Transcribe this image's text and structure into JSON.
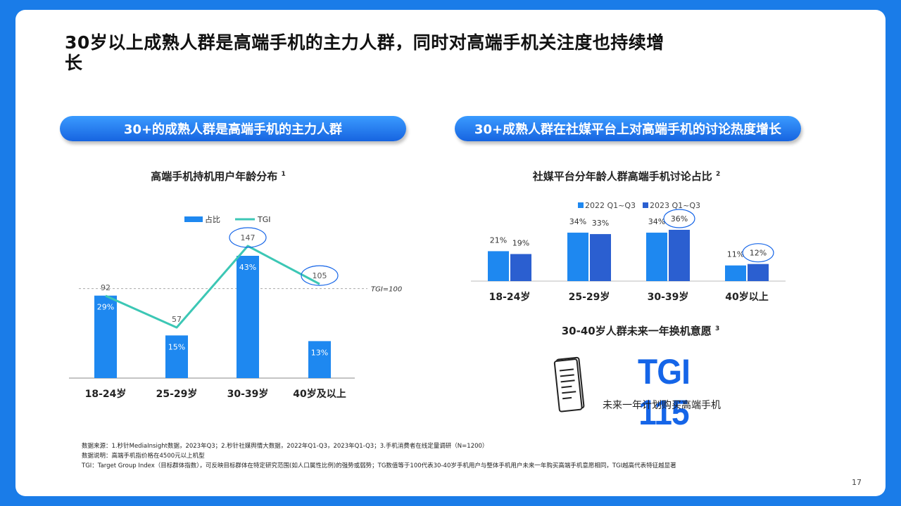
{
  "title": "30岁以上成熟人群是高端手机的主力人群，同时对高端手机关注度也持续增长",
  "left_banner": "30+的成熟人群是高端手机的主力人群",
  "right_banner": "30+成熟人群在社媒平台上对高端手机的讨论热度增长",
  "left_subhead": "高端手机持机用户年龄分布",
  "left_subhead_note": "1",
  "right_subhead": "社媒平台分年龄人群高端手机讨论占比",
  "right_subhead_note": "2",
  "tgi_subhead": "30-40岁人群未来一年换机意愿",
  "tgi_subhead_note": "3",
  "tgi_value": "TGI 115",
  "tgi_caption": "未来一年计划购买高端手机",
  "notes": [
    "数据来源：1.秒针MediaInsight数据，2023年Q3；2.秒针社媒舆情大数据，2022年Q1-Q3，2023年Q1-Q3；3.手机消费者在线定量调研（N=1200）",
    "数据说明：高端手机指价格在4500元以上机型",
    "TGI：Target Group Index（目标群体指数），可反映目标群体在特定研究范围(如人口属性比例)的强势或弱势；TG数值等于100代表30-40岁手机用户与整体手机用户未来一年购买高端手机意愿相同，TGI越高代表特征越显著"
  ],
  "page_number": "17",
  "colors": {
    "bar": "#1e88f0",
    "bar_dark": "#2b5fd0",
    "line": "#3cc7b5",
    "accent": "#1565e8"
  },
  "chart_data": [
    {
      "type": "bar",
      "categories": [
        "18-24岁",
        "25-29岁",
        "30-39岁",
        "40岁及以上"
      ],
      "series": [
        {
          "name": "占比",
          "type": "bar",
          "values": [
            29,
            15,
            43,
            13
          ],
          "labels": [
            "29%",
            "15%",
            "43%",
            "13%"
          ]
        },
        {
          "name": "TGI",
          "type": "line",
          "values": [
            92,
            57,
            147,
            105
          ],
          "labels": [
            "92",
            "57",
            "147",
            "105"
          ]
        }
      ],
      "reference_line": {
        "value": 100,
        "label": "TGI=100"
      },
      "highlighted": [
        "30-39岁",
        "40岁及以上"
      ],
      "legend_position": "top"
    },
    {
      "type": "bar",
      "categories": [
        "18-24岁",
        "25-29岁",
        "30-39岁",
        "40岁以上"
      ],
      "series": [
        {
          "name": "2022 Q1~Q3",
          "values": [
            21,
            34,
            34,
            11
          ],
          "labels": [
            "21%",
            "34%",
            "34%",
            "11%"
          ]
        },
        {
          "name": "2023 Q1~Q3",
          "values": [
            19,
            33,
            36,
            12
          ],
          "labels": [
            "19%",
            "33%",
            "36%",
            "12%"
          ]
        }
      ],
      "highlighted": [
        "30-39岁",
        "40岁以上"
      ],
      "legend_position": "top"
    }
  ]
}
